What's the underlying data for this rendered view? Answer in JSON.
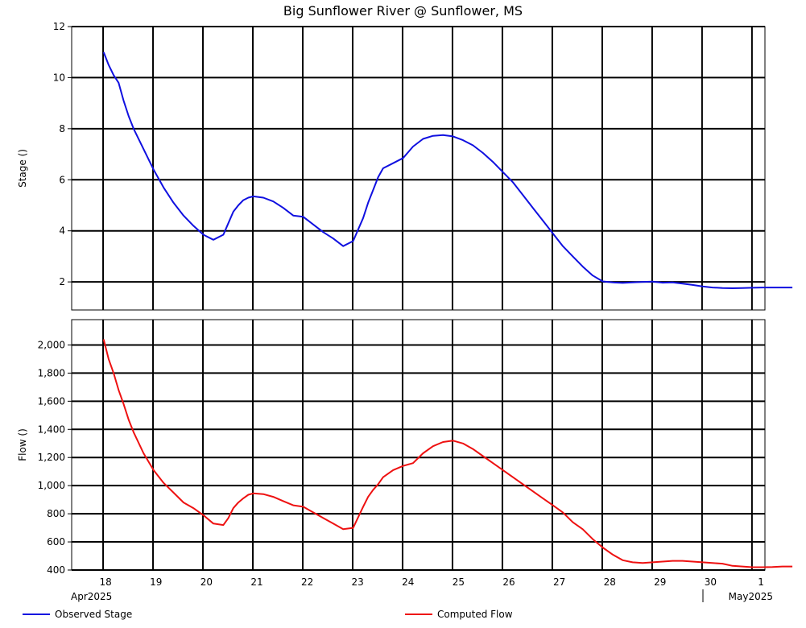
{
  "chart_data": [
    {
      "type": "line",
      "panel": "stage",
      "title": "Big Sunflower River @ Sunflower, MS",
      "ylabel": "Stage ()",
      "ylim": [
        0.9,
        12
      ],
      "yticks": [
        2,
        4,
        6,
        8,
        10,
        12
      ],
      "ytick_labels": [
        "2",
        "4",
        "6",
        "8",
        "10",
        "12"
      ],
      "grid": true,
      "series": [
        {
          "name": "Observed Stage",
          "color": "#1010e0",
          "x": [
            18.0,
            18.1,
            18.2,
            18.3,
            18.4,
            18.5,
            18.6,
            18.8,
            19.0,
            19.2,
            19.4,
            19.6,
            19.8,
            20.0,
            20.2,
            20.4,
            20.5,
            20.6,
            20.7,
            20.8,
            20.9,
            21.0,
            21.2,
            21.4,
            21.6,
            21.8,
            22.0,
            22.2,
            22.4,
            22.6,
            22.8,
            23.0,
            23.2,
            23.3,
            23.4,
            23.5,
            23.6,
            23.8,
            24.0,
            24.2,
            24.4,
            24.6,
            24.8,
            25.0,
            25.2,
            25.4,
            25.6,
            25.8,
            26.0,
            26.2,
            26.4,
            26.6,
            26.8,
            27.0,
            27.2,
            27.4,
            27.6,
            27.8,
            28.0,
            28.2,
            28.4,
            28.6,
            28.8,
            29.0,
            29.2,
            29.4,
            29.6,
            29.8,
            30.0,
            30.2,
            30.4,
            30.6,
            30.8,
            31.0,
            31.2,
            31.4,
            31.6,
            31.8
          ],
          "y": [
            11.0,
            10.5,
            10.1,
            9.8,
            9.1,
            8.5,
            8.0,
            7.2,
            6.4,
            5.7,
            5.1,
            4.6,
            4.2,
            3.85,
            3.65,
            3.85,
            4.3,
            4.75,
            5.0,
            5.2,
            5.3,
            5.35,
            5.3,
            5.15,
            4.9,
            4.6,
            4.55,
            4.25,
            3.95,
            3.7,
            3.4,
            3.6,
            4.5,
            5.1,
            5.6,
            6.1,
            6.45,
            6.65,
            6.85,
            7.3,
            7.6,
            7.72,
            7.75,
            7.7,
            7.55,
            7.35,
            7.05,
            6.7,
            6.3,
            5.9,
            5.4,
            4.9,
            4.4,
            3.9,
            3.4,
            3.0,
            2.6,
            2.25,
            2.02,
            1.98,
            1.96,
            1.98,
            2.0,
            2.01,
            1.97,
            1.98,
            1.93,
            1.88,
            1.82,
            1.78,
            1.76,
            1.75,
            1.76,
            1.77,
            1.78,
            1.78,
            1.78,
            1.78
          ]
        }
      ]
    },
    {
      "type": "line",
      "panel": "flow",
      "ylabel": "Flow ()",
      "ylim": [
        400,
        2180
      ],
      "yticks": [
        400,
        600,
        800,
        1000,
        1200,
        1400,
        1600,
        1800,
        2000
      ],
      "ytick_labels": [
        "400",
        "600",
        "800",
        "1,000",
        "1,200",
        "1,400",
        "1,600",
        "1,800",
        "2,000"
      ],
      "grid": true,
      "x_tick_labels": [
        "18",
        "19",
        "20",
        "21",
        "22",
        "23",
        "24",
        "25",
        "26",
        "27",
        "28",
        "29",
        "30",
        "1"
      ],
      "x_date_labels": [
        "Apr2025",
        "May2025"
      ],
      "series": [
        {
          "name": "Computed Flow",
          "color": "#ee1111",
          "x": [
            18.0,
            18.1,
            18.2,
            18.3,
            18.4,
            18.5,
            18.6,
            18.8,
            19.0,
            19.2,
            19.4,
            19.6,
            19.8,
            20.0,
            20.2,
            20.4,
            20.5,
            20.6,
            20.7,
            20.8,
            20.9,
            21.0,
            21.2,
            21.4,
            21.6,
            21.8,
            22.0,
            22.2,
            22.4,
            22.6,
            22.8,
            23.0,
            23.2,
            23.3,
            23.4,
            23.5,
            23.6,
            23.8,
            24.0,
            24.2,
            24.4,
            24.6,
            24.8,
            25.0,
            25.2,
            25.4,
            25.6,
            25.8,
            26.0,
            26.2,
            26.4,
            26.6,
            26.8,
            27.0,
            27.2,
            27.4,
            27.6,
            27.8,
            28.0,
            28.2,
            28.4,
            28.6,
            28.8,
            29.0,
            29.2,
            29.4,
            29.6,
            29.8,
            30.0,
            30.2,
            30.4,
            30.6,
            30.8,
            31.0,
            31.2,
            31.4,
            31.6,
            31.8
          ],
          "y": [
            2040,
            1900,
            1800,
            1680,
            1580,
            1470,
            1380,
            1230,
            1110,
            1020,
            950,
            880,
            840,
            790,
            730,
            720,
            770,
            840,
            880,
            910,
            935,
            945,
            940,
            920,
            890,
            860,
            850,
            810,
            770,
            730,
            690,
            700,
            850,
            920,
            970,
            1010,
            1060,
            1110,
            1140,
            1160,
            1230,
            1280,
            1310,
            1320,
            1300,
            1260,
            1210,
            1160,
            1110,
            1060,
            1010,
            960,
            910,
            860,
            810,
            740,
            690,
            620,
            560,
            510,
            470,
            455,
            450,
            455,
            460,
            465,
            465,
            460,
            455,
            450,
            445,
            430,
            425,
            420,
            420,
            422,
            425,
            425
          ]
        }
      ]
    }
  ]
}
